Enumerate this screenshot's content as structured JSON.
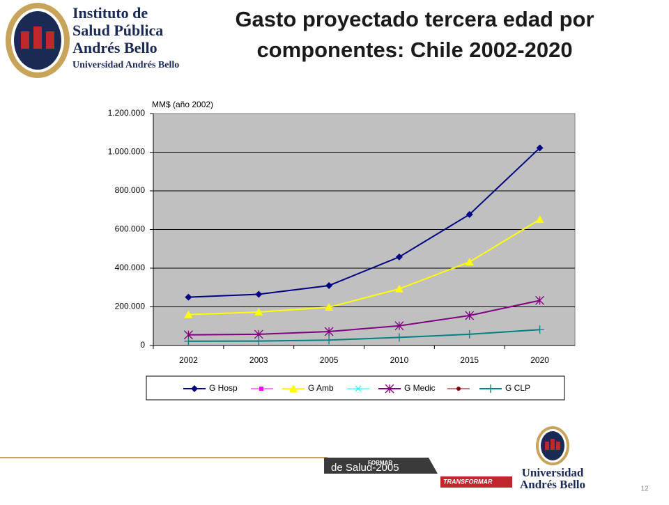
{
  "logo": {
    "lines": [
      "Instituto de",
      "Salud Pública",
      "Andrés Bello"
    ],
    "subtitle": "Universidad Andrés Bello"
  },
  "chart_data": {
    "type": "line",
    "title": "Gasto proyectado tercera edad por componentes: Chile 2002-2020",
    "y_label": "MM$ (año 2002)",
    "categories": [
      "2002",
      "2003",
      "2005",
      "2010",
      "2015",
      "2020"
    ],
    "series": [
      {
        "name": "G Hosp",
        "color": "#000080",
        "marker": "diamond",
        "values": [
          250000,
          265000,
          310000,
          458000,
          678000,
          1022000
        ]
      },
      {
        "name": "G Amb",
        "color": "#ffff00",
        "marker": "triangle",
        "values": [
          160000,
          173000,
          198000,
          293000,
          432000,
          652000
        ]
      },
      {
        "name": "G Medic",
        "color": "#800080",
        "marker": "star",
        "values": [
          55000,
          58000,
          72000,
          102000,
          155000,
          233000
        ]
      },
      {
        "name": "G CLP",
        "color": "#008080",
        "marker": "plus",
        "values": [
          22000,
          23000,
          28000,
          42000,
          58000,
          82000
        ]
      }
    ],
    "ylim": [
      0,
      1200000
    ],
    "yticks": [
      0,
      {
        "value": 200000,
        "label": "200.000"
      },
      {
        "value": 400000,
        "label": "400.000"
      },
      {
        "value": 600000,
        "label": "600.000"
      },
      {
        "value": 800000,
        "label": "800.000"
      },
      {
        "value": 1000000,
        "label": "1.000.000"
      },
      {
        "value": 1200000,
        "label": "1.200.000"
      }
    ],
    "grid": true
  },
  "footer": {
    "source": "de Salud-2005",
    "band1": "FORMAR",
    "band2": "TRANSFORMAR",
    "university": [
      "Universidad",
      "Andrés Bello"
    ],
    "page": "12"
  }
}
